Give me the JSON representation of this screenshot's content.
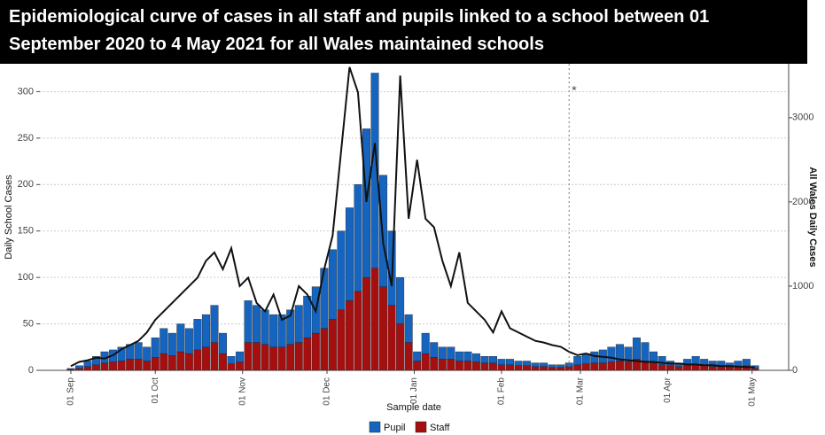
{
  "chart_data": {
    "type": "bar",
    "title": "Epidemiological curve of cases in all staff and pupils linked to a school between 01 September 2020 to 4 May 2021 for all Wales maintained schools",
    "x_label": "Sample date",
    "y_label": "Daily School Cases",
    "y2_label": "All Wales Daily Cases",
    "stacked": true,
    "grid": true,
    "legend": "bottom",
    "annotation": {
      "text": "*",
      "x": 177
    },
    "x": [
      0,
      3,
      6,
      9,
      12,
      15,
      18,
      21,
      24,
      27,
      30,
      33,
      36,
      39,
      42,
      45,
      48,
      51,
      54,
      57,
      60,
      63,
      66,
      69,
      72,
      75,
      78,
      81,
      84,
      87,
      90,
      93,
      96,
      99,
      102,
      105,
      108,
      111,
      114,
      117,
      120,
      123,
      126,
      129,
      132,
      135,
      138,
      141,
      144,
      147,
      150,
      153,
      156,
      159,
      162,
      165,
      168,
      171,
      174,
      177,
      180,
      183,
      186,
      189,
      192,
      195,
      198,
      201,
      204,
      207,
      210,
      213,
      216,
      219,
      222,
      225,
      228,
      231,
      234,
      237,
      240,
      243
    ],
    "xlim": [
      -11,
      255
    ],
    "xticks": [
      {
        "value": 0,
        "label": "01 Sep"
      },
      {
        "value": 30,
        "label": "01 Oct"
      },
      {
        "value": 61,
        "label": "01 Nov"
      },
      {
        "value": 91,
        "label": "01 Dec"
      },
      {
        "value": 122,
        "label": "01 Jan"
      },
      {
        "value": 153,
        "label": "01 Feb"
      },
      {
        "value": 181,
        "label": "01 Mar"
      },
      {
        "value": 212,
        "label": "01 Apr"
      },
      {
        "value": 242,
        "label": "01 May"
      }
    ],
    "ylim": [
      0,
      330
    ],
    "yticks": [
      0,
      50,
      100,
      150,
      200,
      250,
      300
    ],
    "y2lim": [
      0,
      3640
    ],
    "y2ticks": [
      0,
      1000,
      2000,
      3000
    ],
    "series": [
      {
        "name": "Pupil",
        "color": "#1565c0",
        "values": [
          1,
          3,
          6,
          9,
          12,
          13,
          15,
          16,
          18,
          15,
          21,
          27,
          24,
          30,
          27,
          33,
          35,
          40,
          22,
          8,
          11,
          45,
          40,
          37,
          35,
          35,
          37,
          40,
          45,
          50,
          65,
          75,
          85,
          100,
          115,
          160,
          210,
          120,
          80,
          50,
          30,
          10,
          22,
          16,
          13,
          13,
          10,
          10,
          9,
          7,
          7,
          6,
          6,
          5,
          5,
          4,
          4,
          3,
          3,
          4,
          9,
          11,
          12,
          14,
          16,
          18,
          16,
          23,
          20,
          12,
          9,
          5,
          4,
          7,
          9,
          7,
          6,
          6,
          4,
          6,
          7,
          3
        ]
      },
      {
        "name": "Staff",
        "color": "#a50f0f",
        "values": [
          1,
          2,
          4,
          6,
          8,
          9,
          10,
          12,
          12,
          10,
          14,
          18,
          16,
          20,
          18,
          22,
          25,
          30,
          18,
          7,
          9,
          30,
          30,
          28,
          25,
          25,
          28,
          30,
          35,
          40,
          45,
          55,
          65,
          75,
          85,
          100,
          110,
          90,
          70,
          50,
          30,
          10,
          18,
          14,
          12,
          12,
          10,
          10,
          9,
          8,
          8,
          6,
          6,
          5,
          5,
          4,
          4,
          3,
          3,
          4,
          6,
          7,
          8,
          8,
          9,
          10,
          9,
          12,
          10,
          8,
          6,
          5,
          4,
          5,
          6,
          5,
          4,
          4,
          4,
          4,
          5,
          2
        ]
      },
      {
        "type": "line",
        "axis": "y2",
        "color": "#111111",
        "values": [
          50,
          100,
          120,
          150,
          140,
          180,
          250,
          300,
          350,
          450,
          600,
          700,
          800,
          900,
          1000,
          1100,
          1300,
          1400,
          1200,
          1450,
          1000,
          1100,
          800,
          700,
          900,
          600,
          650,
          1000,
          900,
          700,
          1200,
          1600,
          2600,
          3600,
          3300,
          2000,
          2700,
          1500,
          1000,
          3500,
          1800,
          2500,
          1800,
          1700,
          1300,
          1000,
          1400,
          800,
          700,
          600,
          450,
          700,
          500,
          450,
          400,
          350,
          330,
          300,
          280,
          220,
          180,
          200,
          170,
          160,
          150,
          130,
          120,
          110,
          100,
          100,
          90,
          80,
          80,
          70,
          70,
          60,
          60,
          50,
          50,
          45,
          40,
          35
        ]
      }
    ]
  }
}
